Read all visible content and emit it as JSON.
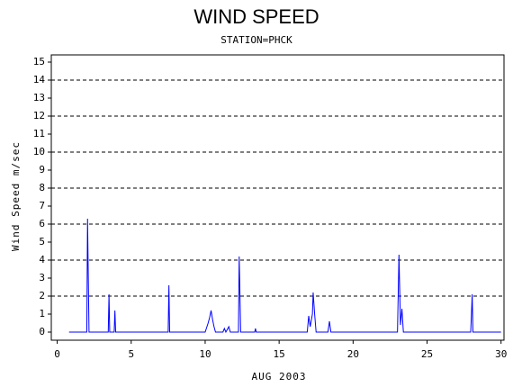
{
  "chart_data": {
    "type": "line",
    "title": "WIND SPEED",
    "subtitle": "STATION=PHCK",
    "x_label": "AUG 2003",
    "y_label": "Wind Speed m/sec",
    "x": [
      0.8,
      2.0,
      2.05,
      2.1,
      2.15,
      3.45,
      3.5,
      3.55,
      3.85,
      3.9,
      3.95,
      7.5,
      7.55,
      7.6,
      10.0,
      10.2,
      10.3,
      10.4,
      10.5,
      10.6,
      10.7,
      11.2,
      11.3,
      11.4,
      11.6,
      11.7,
      12.25,
      12.3,
      12.35,
      12.4,
      13.35,
      13.4,
      13.45,
      16.9,
      17.0,
      17.1,
      17.25,
      17.3,
      17.4,
      17.5,
      18.3,
      18.4,
      18.5,
      23.0,
      23.05,
      23.1,
      23.2,
      23.3,
      23.4,
      27.95,
      28.0,
      28.05,
      28.1,
      30.0
    ],
    "series": [
      {
        "color": "#0000ff",
        "values": [
          0,
          0,
          6.3,
          3.1,
          0,
          0,
          2.1,
          0,
          0,
          1.2,
          0,
          0,
          2.6,
          0,
          0,
          0.5,
          0.8,
          1.2,
          0.7,
          0.3,
          0,
          0,
          0.2,
          0,
          0.3,
          0,
          0,
          4.2,
          2.2,
          0,
          0,
          0.2,
          0,
          0,
          0.9,
          0.3,
          1.0,
          2.2,
          1.0,
          0,
          0,
          0.6,
          0,
          0,
          2.1,
          4.3,
          0.4,
          1.3,
          0,
          0,
          1.0,
          2.1,
          0,
          0
        ]
      }
    ],
    "xlim": [
      -0.4,
      30.2
    ],
    "xticks": [
      0,
      5,
      10,
      15,
      20,
      25,
      30
    ],
    "ylim": [
      -0.45,
      15.4
    ],
    "yticks": [
      0,
      1,
      2,
      3,
      4,
      5,
      6,
      7,
      8,
      9,
      10,
      11,
      12,
      13,
      14,
      15
    ],
    "grid_lines": [
      2,
      4,
      6,
      8,
      10,
      12,
      14
    ]
  }
}
